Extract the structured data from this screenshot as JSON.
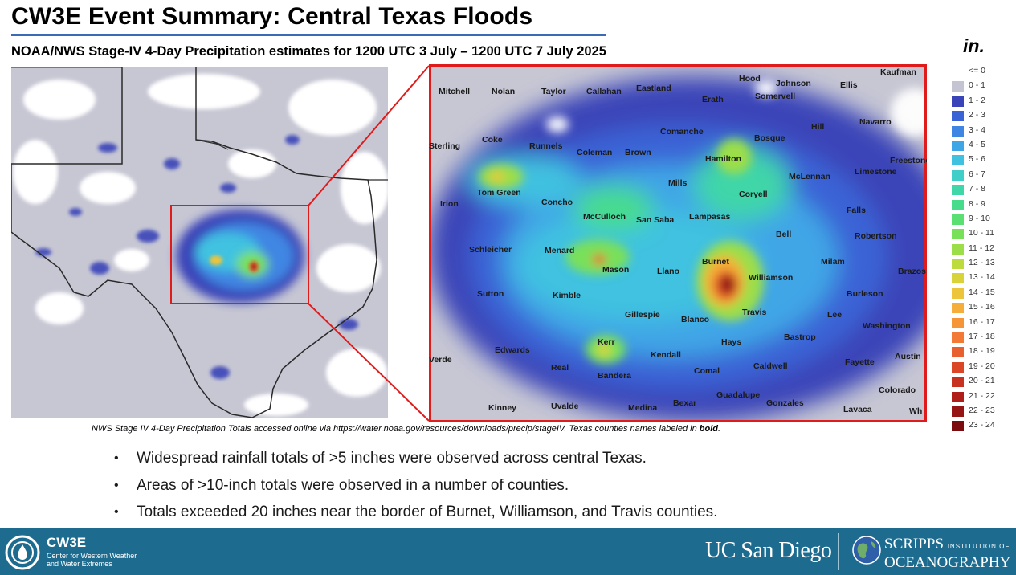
{
  "header": {
    "title": "CW3E Event Summary: Central Texas Floods",
    "subtitle": "NOAA/NWS Stage-IV 4-Day Precipitation estimates for 1200 UTC 3 July – 1200 UTC 7 July 2025"
  },
  "legend": {
    "unit": "in.",
    "entries": [
      {
        "label": "<= 0",
        "color": "#ffffff"
      },
      {
        "label": "0 - 1",
        "color": "#c4c4d2"
      },
      {
        "label": "1 - 2",
        "color": "#3a44b8"
      },
      {
        "label": "2 - 3",
        "color": "#3a63d6"
      },
      {
        "label": "3 - 4",
        "color": "#3f86e3"
      },
      {
        "label": "4 - 5",
        "color": "#3fa6e6"
      },
      {
        "label": "5 - 6",
        "color": "#3fc2e0"
      },
      {
        "label": "6 - 7",
        "color": "#3fcfc8"
      },
      {
        "label": "7 - 8",
        "color": "#3fd6a8"
      },
      {
        "label": "8 - 9",
        "color": "#46dc8c"
      },
      {
        "label": "9 - 10",
        "color": "#5ae072"
      },
      {
        "label": "10 - 11",
        "color": "#79e05a"
      },
      {
        "label": "11 - 12",
        "color": "#9cde48"
      },
      {
        "label": "12 - 13",
        "color": "#bddb3d"
      },
      {
        "label": "13 - 14",
        "color": "#d9d33a"
      },
      {
        "label": "14 - 15",
        "color": "#ecc53a"
      },
      {
        "label": "15 - 16",
        "color": "#f5ae39"
      },
      {
        "label": "16 - 17",
        "color": "#f69438"
      },
      {
        "label": "17 - 18",
        "color": "#f27a34"
      },
      {
        "label": "18 - 19",
        "color": "#e8602e"
      },
      {
        "label": "19 - 20",
        "color": "#db4627"
      },
      {
        "label": "20 - 21",
        "color": "#c83020"
      },
      {
        "label": "21 - 22",
        "color": "#b01e19"
      },
      {
        "label": "22 - 23",
        "color": "#951414"
      },
      {
        "label": "23 - 24",
        "color": "#7a0c10"
      }
    ]
  },
  "map": {
    "counties": [
      "Kaufman",
      "Hood",
      "Johnson",
      "Ellis",
      "Mitchell",
      "Nolan",
      "Taylor",
      "Callahan",
      "Eastland",
      "Erath",
      "Somervell",
      "Navarro",
      "Hill",
      "Comanche",
      "Bosque",
      "Sterling",
      "Coke",
      "Runnels",
      "Coleman",
      "Brown",
      "Hamilton",
      "Freestone",
      "Limestone",
      "McLennan",
      "Mills",
      "Coryell",
      "Tom Green",
      "Concho",
      "Irion",
      "Falls",
      "McCulloch",
      "San Saba",
      "Lampasas",
      "Bell",
      "Robertson",
      "Schleicher",
      "Menard",
      "Burnet",
      "Milam",
      "Mason",
      "Llano",
      "Brazos",
      "Williamson",
      "Sutton",
      "Kimble",
      "Burleson",
      "Travis",
      "Lee",
      "Gillespie",
      "Blanco",
      "Washington",
      "Bastrop",
      "Kerr",
      "Edwards",
      "Hays",
      "Austin",
      "Verde",
      "Kendall",
      "Fayette",
      "Caldwell",
      "Real",
      "Comal",
      "Bandera",
      "Colorado",
      "Guadalupe",
      "Kinney",
      "Uvalde",
      "Bexar",
      "Medina",
      "Gonzales",
      "Lavaca",
      "Wh"
    ]
  },
  "caption": {
    "text": "NWS Stage IV 4-Day Precipitation Totals accessed online via https://water.noaa.gov/resources/downloads/precip/stageIV. Texas counties names labeled in ",
    "bold": "bold",
    "end": "."
  },
  "bullets": [
    "Widespread rainfall totals of >5 inches were observed across central Texas.",
    "Areas of >10-inch totals were observed in a number of counties.",
    "Totals exceeded 20 inches near the border of Burnet, Williamson, and Travis counties."
  ],
  "footer": {
    "org_short": "CW3E",
    "org_line1": "Center for Western Weather",
    "org_line2": "and Water Extremes",
    "ucsd": "UC San Diego",
    "scripps_main": "SCRIPPS",
    "scripps_inst": "INSTITUTION OF",
    "scripps_ocean": "OCEANOGRAPHY"
  }
}
